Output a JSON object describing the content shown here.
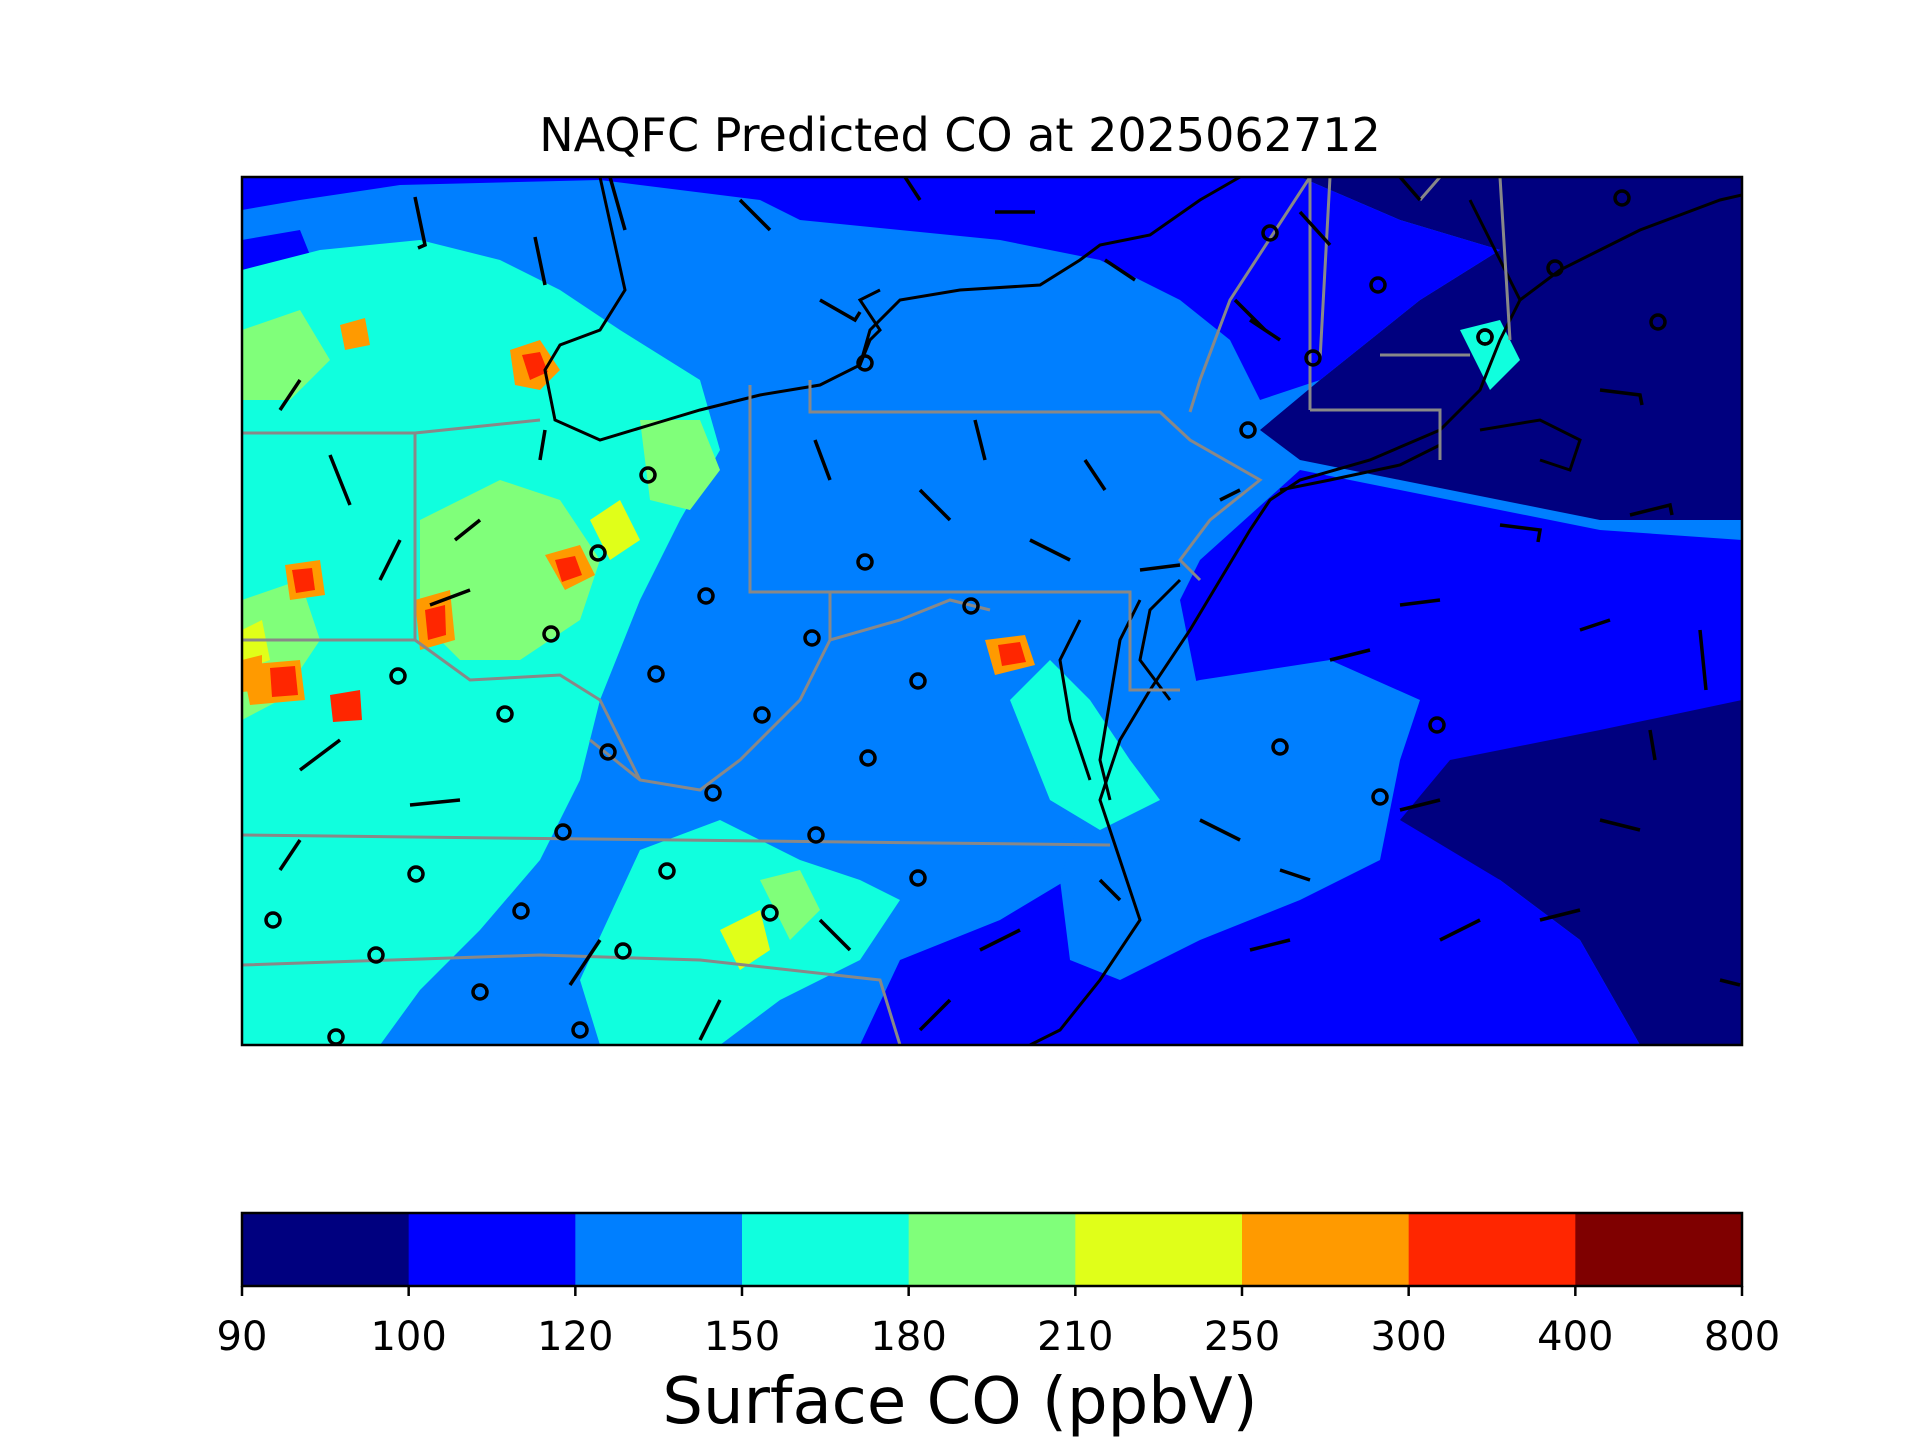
{
  "chart_data": {
    "type": "heatmap",
    "title": "NAQFC Predicted CO at 2025062712",
    "colorbar": {
      "label": "Surface CO (ppbV)",
      "levels": [
        90,
        100,
        120,
        150,
        180,
        210,
        250,
        300,
        400,
        800
      ],
      "tick_labels": [
        "90",
        "100",
        "120",
        "150",
        "180",
        "210",
        "250",
        "300",
        "400",
        "800"
      ],
      "colors": [
        "#00007f",
        "#0000ff",
        "#007fff",
        "#10ffde",
        "#80ff7a",
        "#e0ff19",
        "#ff9a00",
        "#ff2600",
        "#7f0000"
      ]
    },
    "region": "Mid-Atlantic / Northeast United States",
    "overlays": [
      "state boundaries (gray)",
      "coastlines and lakes (black)",
      "wind barbs (black)",
      "observation sites (open circles)"
    ],
    "grid": false
  }
}
